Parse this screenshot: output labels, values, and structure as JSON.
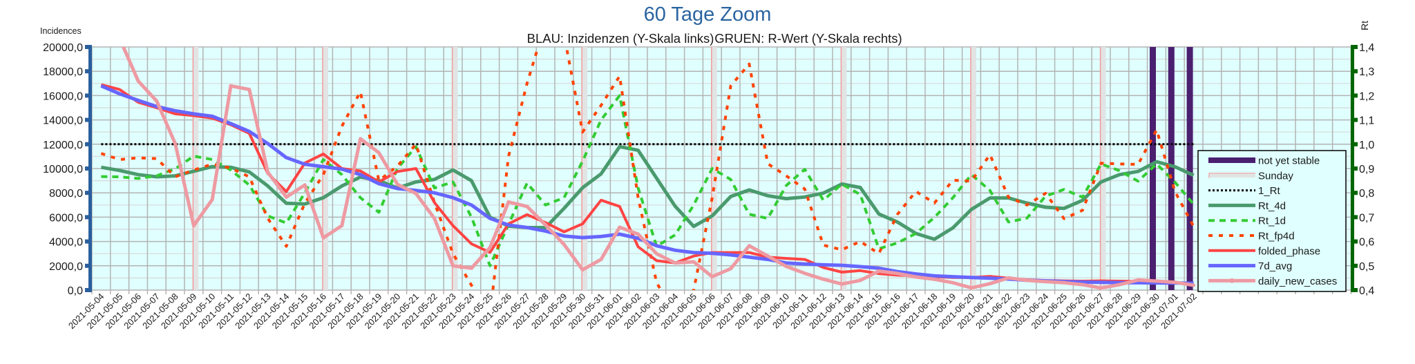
{
  "chart_data": {
    "type": "line",
    "title": "60 Tage Zoom",
    "subtitle_left": "BLAU: Inzidenzen (Y-Skala links)",
    "subtitle_right": "GRUEN: R-Wert (Y-Skala rechts)",
    "ylabel": "Incidences",
    "y2label": "Rt",
    "ylim": [
      0,
      20000
    ],
    "y2lim": [
      0.4,
      1.4
    ],
    "yticks": [
      "0,0",
      "2000,0",
      "4000,0",
      "6000,0",
      "8000,0",
      "10000,0",
      "12000,0",
      "14000,0",
      "16000,0",
      "18000,0",
      "20000,0"
    ],
    "y2ticks": [
      "0,4",
      "0,5",
      "0,6",
      "0,7",
      "0,8",
      "0,9",
      "1,0",
      "1,1",
      "1,2",
      "1,3",
      "1,4"
    ],
    "grid": true,
    "legend_position": "bottom-right",
    "colors": {
      "background": "#e0ffff",
      "title": "#2a64a0",
      "left_axis": "#2a5f9e",
      "right_axis": "#006600",
      "not_yet_stable": "#4b1f6f",
      "sunday": "#e2e4e4",
      "sunday_edge": "#f29a9a",
      "one_rt": "#000000",
      "rt_4d": "#4a9a6e",
      "rt_1d": "#33cc33",
      "rt_fp4d": "#ff4400",
      "folded_phase": "#ff4444",
      "avg7d": "#6666ff",
      "daily": "#ee9aa2"
    },
    "categories": [
      "2021-05-04",
      "2021-05-05",
      "2021-05-06",
      "2021-05-07",
      "2021-05-08",
      "2021-05-09",
      "2021-05-10",
      "2021-05-11",
      "2021-05-12",
      "2021-05-13",
      "2021-05-14",
      "2021-05-15",
      "2021-05-16",
      "2021-05-17",
      "2021-05-18",
      "2021-05-19",
      "2021-05-20",
      "2021-05-21",
      "2021-05-22",
      "2021-05-23",
      "2021-05-24",
      "2021-05-25",
      "2021-05-26",
      "2021-05-27",
      "2021-05-28",
      "2021-05-29",
      "2021-05-30",
      "2021-05-31",
      "2021-06-01",
      "2021-06-02",
      "2021-06-03",
      "2021-06-04",
      "2021-06-05",
      "2021-06-06",
      "2021-06-07",
      "2021-06-08",
      "2021-06-09",
      "2021-06-10",
      "2021-06-11",
      "2021-06-12",
      "2021-06-13",
      "2021-06-14",
      "2021-06-15",
      "2021-06-16",
      "2021-06-17",
      "2021-06-18",
      "2021-06-19",
      "2021-06-20",
      "2021-06-21",
      "2021-06-22",
      "2021-06-23",
      "2021-06-24",
      "2021-06-25",
      "2021-06-26",
      "2021-06-27",
      "2021-06-28",
      "2021-06-29",
      "2021-06-30",
      "2021-07-01",
      "2021-07-02"
    ],
    "sundays": [
      "2021-05-09",
      "2021-05-16",
      "2021-05-23",
      "2021-05-30",
      "2021-06-06",
      "2021-06-13",
      "2021-06-20",
      "2021-06-27"
    ],
    "not_yet_stable": [
      "2021-06-30",
      "2021-07-01",
      "2021-07-02"
    ],
    "legend": [
      "not yet stable",
      "Sunday",
      "1_Rt",
      "Rt_4d",
      "Rt_1d",
      "Rt_fp4d",
      "folded_phase",
      "7d_avg",
      "daily_new_cases"
    ],
    "series": [
      {
        "name": "1_Rt",
        "axis": "right",
        "values": [
          1,
          1,
          1,
          1,
          1,
          1,
          1,
          1,
          1,
          1,
          1,
          1,
          1,
          1,
          1,
          1,
          1,
          1,
          1,
          1,
          1,
          1,
          1,
          1,
          1,
          1,
          1,
          1,
          1,
          1,
          1,
          1,
          1,
          1,
          1,
          1,
          1,
          1,
          1,
          1,
          1,
          1,
          1,
          1,
          1,
          1,
          1,
          1,
          1,
          1,
          1,
          1,
          1,
          1,
          1,
          1,
          1,
          1,
          1,
          1
        ]
      },
      {
        "name": "Rt_4d",
        "axis": "right",
        "values": [
          0.905,
          0.892,
          0.875,
          0.866,
          0.87,
          0.889,
          0.908,
          0.905,
          0.886,
          0.828,
          0.757,
          0.754,
          0.78,
          0.828,
          0.865,
          0.85,
          0.82,
          0.845,
          0.855,
          0.894,
          0.85,
          0.7,
          0.663,
          0.657,
          0.657,
          0.736,
          0.821,
          0.878,
          0.99,
          0.975,
          0.86,
          0.745,
          0.662,
          0.705,
          0.785,
          0.812,
          0.788,
          0.776,
          0.783,
          0.799,
          0.836,
          0.822,
          0.713,
          0.68,
          0.633,
          0.609,
          0.656,
          0.732,
          0.779,
          0.779,
          0.758,
          0.741,
          0.736,
          0.769,
          0.845,
          0.875,
          0.888,
          0.928,
          0.907,
          0.872
        ]
      },
      {
        "name": "Rt_1d",
        "axis": "right",
        "values": [
          0.867,
          0.866,
          0.859,
          0.87,
          0.899,
          0.951,
          0.937,
          0.894,
          0.832,
          0.705,
          0.676,
          0.8,
          0.937,
          0.875,
          0.78,
          0.72,
          0.9,
          0.99,
          0.82,
          0.845,
          0.7,
          0.5,
          0.67,
          0.84,
          0.75,
          0.78,
          0.93,
          1.1,
          1.2,
          0.82,
          0.58,
          0.627,
          0.75,
          0.9,
          0.855,
          0.712,
          0.695,
          0.83,
          0.897,
          0.77,
          0.836,
          0.793,
          0.57,
          0.594,
          0.633,
          0.699,
          0.78,
          0.875,
          0.81,
          0.68,
          0.696,
          0.786,
          0.814,
          0.782,
          0.919,
          0.891,
          0.848,
          0.919,
          0.843,
          0.753
        ]
      },
      {
        "name": "Rt_fp4d",
        "axis": "right",
        "values": [
          0.962,
          0.937,
          0.944,
          0.941,
          0.866,
          0.894,
          0.918,
          0.902,
          0.866,
          0.695,
          0.58,
          0.757,
          0.875,
          1.074,
          1.216,
          0.85,
          0.91,
          1.0,
          0.76,
          0.55,
          0.42,
          0.3,
          0.95,
          1.25,
          1.5,
          1.45,
          1.05,
          1.16,
          1.28,
          0.78,
          0.43,
          0.3,
          0.4,
          0.78,
          1.24,
          1.33,
          0.92,
          0.87,
          0.816,
          0.585,
          0.566,
          0.6,
          0.55,
          0.711,
          0.806,
          0.758,
          0.852,
          0.848,
          0.957,
          0.782,
          0.75,
          0.798,
          0.694,
          0.728,
          0.922,
          0.919,
          0.917,
          1.059,
          0.804,
          0.662
        ]
      },
      {
        "name": "folded_phase",
        "axis": "left",
        "values": [
          16900,
          16500,
          15450,
          15000,
          14500,
          14350,
          14150,
          13600,
          12900,
          9600,
          8100,
          10450,
          11200,
          10000,
          9800,
          8900,
          9750,
          10000,
          7200,
          5300,
          3800,
          3100,
          5450,
          6210,
          5550,
          4790,
          5450,
          7400,
          6880,
          3560,
          2420,
          2235,
          2800,
          3090,
          3090,
          3090,
          2710,
          2610,
          2520,
          1860,
          1480,
          1600,
          1360,
          1230,
          1170,
          1100,
          1040,
          1040,
          1130,
          980,
          850,
          790,
          760,
          740,
          760,
          740,
          720,
          740,
          600,
          450
        ]
      },
      {
        "name": "7d_avg",
        "axis": "left",
        "values": [
          16800,
          16150,
          15600,
          15100,
          14750,
          14500,
          14300,
          13700,
          13050,
          12050,
          10900,
          10350,
          10150,
          9950,
          9500,
          8750,
          8350,
          8200,
          8000,
          7600,
          7000,
          5900,
          5350,
          5150,
          4850,
          4450,
          4320,
          4410,
          4600,
          4260,
          3650,
          3280,
          3090,
          3030,
          2900,
          2710,
          2520,
          2235,
          2140,
          2080,
          2040,
          1930,
          1800,
          1520,
          1330,
          1170,
          1100,
          1040,
          980,
          910,
          810,
          760,
          700,
          660,
          640,
          620,
          600,
          590,
          580,
          570
        ]
      },
      {
        "name": "daily_new_cases",
        "axis": "left",
        "values": [
          24000,
          20700,
          17200,
          15550,
          12050,
          5300,
          7450,
          16800,
          16500,
          9700,
          7650,
          8650,
          4300,
          5300,
          12450,
          11300,
          8700,
          7950,
          5900,
          2000,
          1800,
          3500,
          7250,
          6880,
          5360,
          3750,
          1670,
          2520,
          5170,
          4600,
          2990,
          2235,
          2330,
          1100,
          1760,
          3650,
          2800,
          1950,
          1380,
          900,
          500,
          800,
          1560,
          1370,
          1080,
          890,
          610,
          180,
          530,
          1000,
          800,
          700,
          610,
          450,
          170,
          450,
          830,
          740,
          640,
          400
        ]
      }
    ]
  }
}
